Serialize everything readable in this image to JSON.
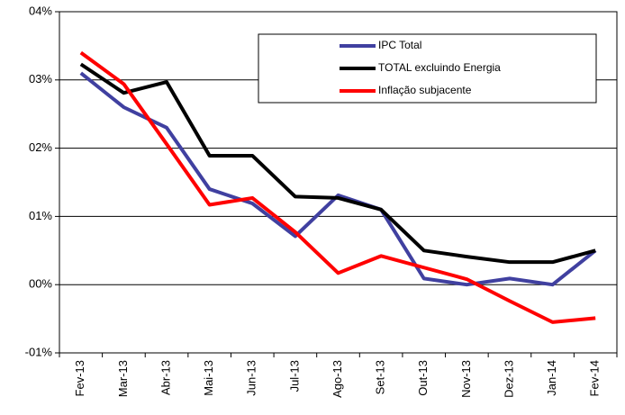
{
  "chart_data": {
    "type": "line",
    "categories": [
      "Fev-13",
      "Mar-13",
      "Abr-13",
      "Mai-13",
      "Jun-13",
      "Jul-13",
      "Ago-13",
      "Set-13",
      "Out-13",
      "Nov-13",
      "Dez-13",
      "Jan-14",
      "Fev-14"
    ],
    "series": [
      {
        "name": "IPC Total",
        "color": "#4040a0",
        "values": [
          3.1,
          2.6,
          2.3,
          1.4,
          1.19,
          0.71,
          1.31,
          1.1,
          0.09,
          0.0,
          0.09,
          0.0,
          0.5
        ]
      },
      {
        "name": "TOTAL excluindo Energia",
        "color": "#000000",
        "values": [
          3.23,
          2.81,
          2.97,
          1.89,
          1.89,
          1.29,
          1.27,
          1.1,
          0.5,
          0.41,
          0.33,
          0.33,
          0.5
        ]
      },
      {
        "name": "Inflação subjacente",
        "color": "#ff0000",
        "values": [
          3.4,
          2.94,
          2.06,
          1.17,
          1.27,
          0.77,
          0.17,
          0.42,
          0.25,
          0.08,
          -0.24,
          -0.55,
          -0.49
        ]
      }
    ],
    "ylim": [
      -1,
      4
    ],
    "yticks": [
      {
        "value": -1,
        "label": "-01%"
      },
      {
        "value": 0,
        "label": "00%"
      },
      {
        "value": 1,
        "label": "01%"
      },
      {
        "value": 2,
        "label": "02%"
      },
      {
        "value": 3,
        "label": "03%"
      },
      {
        "value": 4,
        "label": "04%"
      }
    ],
    "grid": true,
    "legend": "upper right"
  }
}
